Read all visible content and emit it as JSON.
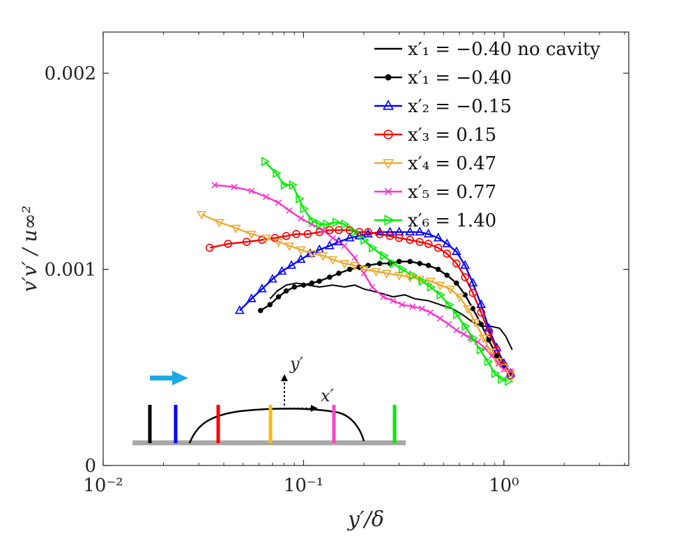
{
  "chart_data": {
    "type": "line",
    "xlabel": "y′/δ",
    "ylabel": "v′v′ / u∞²",
    "xscale": "log",
    "xlim": [
      0.01,
      4.2
    ],
    "ylim": [
      0,
      0.00221
    ],
    "x_ticks": [
      {
        "value": 0.01,
        "label": "10⁻²"
      },
      {
        "value": 0.1,
        "label": "10⁻¹"
      },
      {
        "value": 1,
        "label": "10⁰"
      }
    ],
    "y_ticks": [
      {
        "value": 0,
        "label": "0"
      },
      {
        "value": 0.001,
        "label": "0.001"
      },
      {
        "value": 0.002,
        "label": "0.002"
      }
    ],
    "grid": false,
    "legend_position": "top-right",
    "series": [
      {
        "name": "x′₁ = −0.40 no cavity",
        "color": "#000000",
        "marker": "none",
        "points": [
          [
            0.068,
            0.00085
          ],
          [
            0.074,
            0.00089
          ],
          [
            0.082,
            0.00092
          ],
          [
            0.092,
            0.00093
          ],
          [
            0.105,
            0.00092
          ],
          [
            0.12,
            0.00091
          ],
          [
            0.14,
            0.00092
          ],
          [
            0.16,
            0.00091
          ],
          [
            0.18,
            0.00092
          ],
          [
            0.2,
            0.0009
          ],
          [
            0.24,
            0.00088
          ],
          [
            0.28,
            0.00086
          ],
          [
            0.32,
            0.00087
          ],
          [
            0.36,
            0.00085
          ],
          [
            0.42,
            0.00084
          ],
          [
            0.48,
            0.00082
          ],
          [
            0.55,
            0.0008
          ],
          [
            0.62,
            0.00077
          ],
          [
            0.7,
            0.00073
          ],
          [
            0.78,
            0.00071
          ],
          [
            0.86,
            0.00071
          ],
          [
            0.95,
            0.0007
          ],
          [
            1.02,
            0.00066
          ],
          [
            1.1,
            0.00059
          ]
        ]
      },
      {
        "name": "x′₁ = −0.40",
        "color": "#000000",
        "marker": "circle-filled",
        "points": [
          [
            0.061,
            0.00079
          ],
          [
            0.068,
            0.00082
          ],
          [
            0.075,
            0.00086
          ],
          [
            0.082,
            0.00089
          ],
          [
            0.09,
            0.00091
          ],
          [
            0.1,
            0.00092
          ],
          [
            0.11,
            0.00093
          ],
          [
            0.12,
            0.00094
          ],
          [
            0.135,
            0.00096
          ],
          [
            0.15,
            0.00098
          ],
          [
            0.17,
            0.001
          ],
          [
            0.19,
            0.00101
          ],
          [
            0.21,
            0.00102
          ],
          [
            0.24,
            0.00103
          ],
          [
            0.27,
            0.00103
          ],
          [
            0.3,
            0.00104
          ],
          [
            0.34,
            0.00104
          ],
          [
            0.38,
            0.00103
          ],
          [
            0.42,
            0.00102
          ],
          [
            0.47,
            0.001
          ],
          [
            0.52,
            0.00097
          ],
          [
            0.58,
            0.00093
          ],
          [
            0.64,
            0.00087
          ],
          [
            0.7,
            0.0008
          ],
          [
            0.77,
            0.00072
          ],
          [
            0.84,
            0.00064
          ],
          [
            0.92,
            0.00056
          ],
          [
            1.0,
            0.0005
          ],
          [
            1.08,
            0.00047
          ]
        ]
      },
      {
        "name": "x′₂ = −0.15",
        "color": "#0000ff",
        "marker": "triangle-up",
        "points": [
          [
            0.048,
            0.00079
          ],
          [
            0.055,
            0.00085
          ],
          [
            0.062,
            0.0009
          ],
          [
            0.07,
            0.00095
          ],
          [
            0.078,
            0.00099
          ],
          [
            0.087,
            0.00102
          ],
          [
            0.097,
            0.00105
          ],
          [
            0.108,
            0.00108
          ],
          [
            0.12,
            0.0011
          ],
          [
            0.135,
            0.00112
          ],
          [
            0.15,
            0.00114
          ],
          [
            0.17,
            0.00116
          ],
          [
            0.19,
            0.00117
          ],
          [
            0.21,
            0.00118
          ],
          [
            0.24,
            0.00119
          ],
          [
            0.27,
            0.00119
          ],
          [
            0.3,
            0.00119
          ],
          [
            0.34,
            0.00119
          ],
          [
            0.38,
            0.00119
          ],
          [
            0.42,
            0.00118
          ],
          [
            0.47,
            0.00116
          ],
          [
            0.52,
            0.00113
          ],
          [
            0.58,
            0.00109
          ],
          [
            0.64,
            0.00102
          ],
          [
            0.7,
            0.00093
          ],
          [
            0.77,
            0.00082
          ],
          [
            0.84,
            0.0007
          ],
          [
            0.92,
            0.0006
          ],
          [
            1.0,
            0.00052
          ],
          [
            1.08,
            0.00047
          ]
        ]
      },
      {
        "name": "x′₃ = 0.15",
        "color": "#ff0000",
        "marker": "circle-open",
        "points": [
          [
            0.034,
            0.00111
          ],
          [
            0.042,
            0.00113
          ],
          [
            0.052,
            0.00114
          ],
          [
            0.062,
            0.00115
          ],
          [
            0.072,
            0.00116
          ],
          [
            0.082,
            0.00117
          ],
          [
            0.092,
            0.00118
          ],
          [
            0.105,
            0.00118
          ],
          [
            0.12,
            0.00119
          ],
          [
            0.135,
            0.0012
          ],
          [
            0.15,
            0.0012
          ],
          [
            0.17,
            0.0012
          ],
          [
            0.19,
            0.00119
          ],
          [
            0.21,
            0.00119
          ],
          [
            0.24,
            0.00118
          ],
          [
            0.27,
            0.00117
          ],
          [
            0.3,
            0.00116
          ],
          [
            0.34,
            0.00115
          ],
          [
            0.38,
            0.00114
          ],
          [
            0.42,
            0.00113
          ],
          [
            0.47,
            0.00111
          ],
          [
            0.52,
            0.00108
          ],
          [
            0.58,
            0.00103
          ],
          [
            0.64,
            0.00096
          ],
          [
            0.7,
            0.00088
          ],
          [
            0.77,
            0.00078
          ],
          [
            0.84,
            0.00068
          ],
          [
            0.92,
            0.00059
          ],
          [
            1.0,
            0.00051
          ],
          [
            1.08,
            0.00046
          ]
        ]
      },
      {
        "name": "x′₄ = 0.47",
        "color": "#eeaa33",
        "marker": "triangle-down",
        "points": [
          [
            0.031,
            0.00128
          ],
          [
            0.038,
            0.00124
          ],
          [
            0.046,
            0.00121
          ],
          [
            0.055,
            0.00118
          ],
          [
            0.065,
            0.00116
          ],
          [
            0.075,
            0.00114
          ],
          [
            0.085,
            0.00112
          ],
          [
            0.097,
            0.0011
          ],
          [
            0.11,
            0.00108
          ],
          [
            0.125,
            0.00107
          ],
          [
            0.14,
            0.00105
          ],
          [
            0.16,
            0.00103
          ],
          [
            0.18,
            0.00102
          ],
          [
            0.2,
            0.001
          ],
          [
            0.23,
            0.00099
          ],
          [
            0.26,
            0.00098
          ],
          [
            0.3,
            0.00097
          ],
          [
            0.34,
            0.00096
          ],
          [
            0.38,
            0.00095
          ],
          [
            0.43,
            0.00094
          ],
          [
            0.48,
            0.00092
          ],
          [
            0.54,
            0.0009
          ],
          [
            0.6,
            0.00086
          ],
          [
            0.66,
            0.0008
          ],
          [
            0.72,
            0.00073
          ],
          [
            0.79,
            0.00065
          ],
          [
            0.86,
            0.00058
          ],
          [
            0.93,
            0.00053
          ],
          [
            1.0,
            0.0005
          ],
          [
            1.08,
            0.00047
          ]
        ]
      },
      {
        "name": "x′₅ = 0.77",
        "color": "#ff33cc",
        "marker": "x",
        "points": [
          [
            0.036,
            0.00143
          ],
          [
            0.045,
            0.00142
          ],
          [
            0.055,
            0.0014
          ],
          [
            0.065,
            0.00137
          ],
          [
            0.075,
            0.00134
          ],
          [
            0.085,
            0.0013
          ],
          [
            0.097,
            0.00126
          ],
          [
            0.11,
            0.00123
          ],
          [
            0.125,
            0.0012
          ],
          [
            0.14,
            0.00116
          ],
          [
            0.16,
            0.00112
          ],
          [
            0.18,
            0.00106
          ],
          [
            0.2,
            0.00098
          ],
          [
            0.22,
            0.00091
          ],
          [
            0.25,
            0.00086
          ],
          [
            0.28,
            0.00084
          ],
          [
            0.31,
            0.00082
          ],
          [
            0.35,
            0.00081
          ],
          [
            0.39,
            0.0008
          ],
          [
            0.43,
            0.00078
          ],
          [
            0.48,
            0.00075
          ],
          [
            0.53,
            0.00072
          ],
          [
            0.58,
            0.00069
          ],
          [
            0.63,
            0.00067
          ],
          [
            0.68,
            0.00065
          ],
          [
            0.74,
            0.00063
          ],
          [
            0.8,
            0.0006
          ],
          [
            0.87,
            0.00056
          ],
          [
            0.94,
            0.00052
          ],
          [
            1.0,
            0.00049
          ],
          [
            1.08,
            0.00048
          ]
        ]
      },
      {
        "name": "x′₆ = 1.40",
        "color": "#00ee00",
        "marker": "triangle-right",
        "points": [
          [
            0.064,
            0.00155
          ],
          [
            0.073,
            0.00149
          ],
          [
            0.08,
            0.00143
          ],
          [
            0.088,
            0.00143
          ],
          [
            0.095,
            0.00136
          ],
          [
            0.1,
            0.00131
          ],
          [
            0.11,
            0.00125
          ],
          [
            0.12,
            0.00123
          ],
          [
            0.13,
            0.00123
          ],
          [
            0.145,
            0.00124
          ],
          [
            0.16,
            0.00123
          ],
          [
            0.18,
            0.00119
          ],
          [
            0.2,
            0.00115
          ],
          [
            0.22,
            0.00111
          ],
          [
            0.25,
            0.00107
          ],
          [
            0.28,
            0.00103
          ],
          [
            0.31,
            0.001
          ],
          [
            0.35,
            0.00097
          ],
          [
            0.39,
            0.00094
          ],
          [
            0.43,
            0.00091
          ],
          [
            0.48,
            0.00087
          ],
          [
            0.53,
            0.00082
          ],
          [
            0.58,
            0.00077
          ],
          [
            0.64,
            0.00071
          ],
          [
            0.7,
            0.00065
          ],
          [
            0.76,
            0.00059
          ],
          [
            0.83,
            0.00053
          ],
          [
            0.9,
            0.00047
          ],
          [
            0.97,
            0.00044
          ],
          [
            1.05,
            0.00043
          ]
        ]
      }
    ]
  },
  "inset": {
    "flow_arrow_color": "#1ca9e6",
    "y_axis_label": "y′",
    "x_axis_label": "x′",
    "probe_colors": [
      "#000000",
      "#0000ff",
      "#ff0000",
      "#ffbb00",
      "#ff44cc",
      "#00ee00"
    ]
  }
}
